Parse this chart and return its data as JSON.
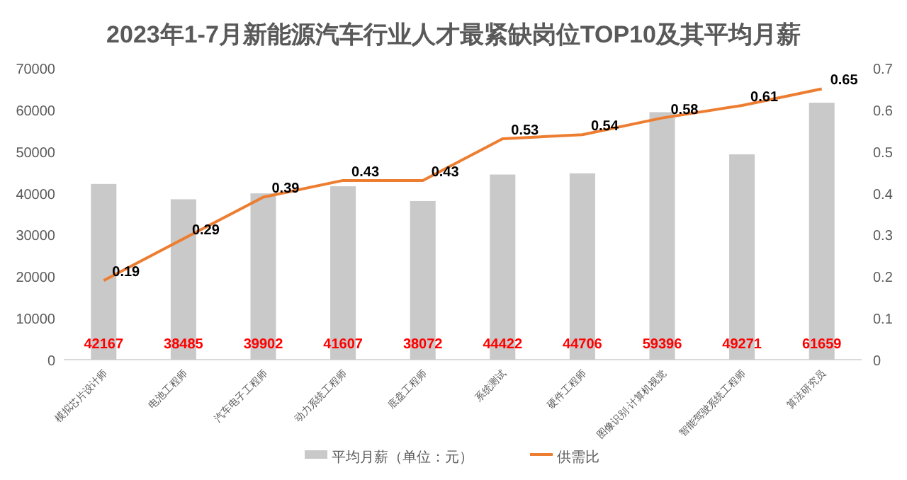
{
  "chart_data": {
    "type": "bar",
    "title": "2023年1-7月新能源汽车行业人才最紧缺岗位TOP10及其平均月薪",
    "categories": [
      "模拟芯片设计师",
      "电池工程师",
      "汽车电子工程师",
      "动力系统工程师",
      "底盘工程师",
      "系统测试",
      "硬件工程师",
      "图像识别·计算机视觉",
      "智能驾驶系统工程师",
      "算法研究员"
    ],
    "series": [
      {
        "name": "平均月薪（单位：元）",
        "color": "#c9c9c9",
        "values": [
          42167,
          38485,
          39902,
          41607,
          38072,
          44422,
          44706,
          59396,
          49271,
          61659
        ],
        "data_labels": true
      },
      {
        "name": "供需比",
        "type": "line",
        "axis": "y2",
        "color": "#ed7d31",
        "values": [
          0.19,
          0.29,
          0.39,
          0.43,
          0.43,
          0.53,
          0.54,
          0.58,
          0.61,
          0.65
        ],
        "data_labels": true
      }
    ],
    "ylim": [
      0,
      70000
    ],
    "yticks": [
      0,
      10000,
      20000,
      30000,
      40000,
      50000,
      60000,
      70000
    ],
    "y2lim": [
      0,
      0.7
    ],
    "y2ticks": [
      0,
      0.1,
      0.2,
      0.3,
      0.4,
      0.5,
      0.6,
      0.7
    ],
    "grid": false,
    "legend": "bottom",
    "marker": "none",
    "line_style": "solid"
  }
}
